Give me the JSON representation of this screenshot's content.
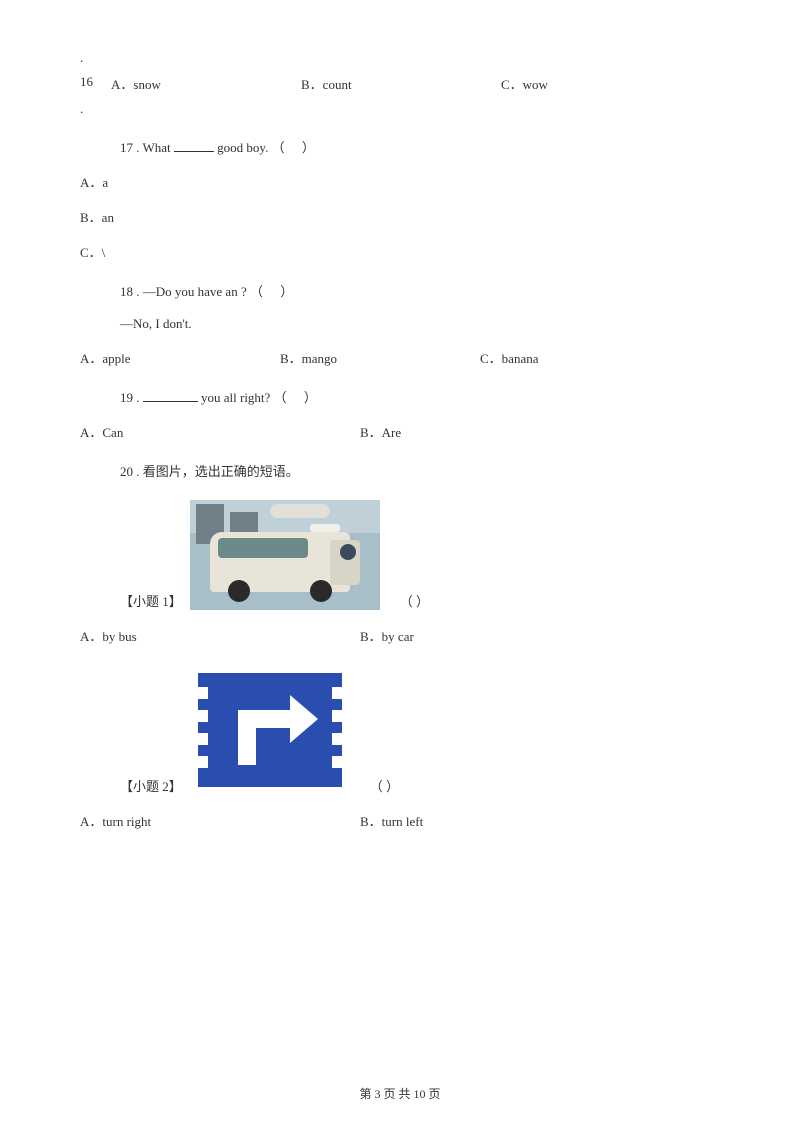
{
  "q16": {
    "num": "16",
    "a": "A．snow",
    "b": "B．count",
    "c": "C．wow"
  },
  "q17": {
    "text_pre": "17 . What ",
    "text_post": " good boy. （",
    "text_end": "）",
    "a": "A．a",
    "b": "B．an",
    "c": "C．\\"
  },
  "q18": {
    "text": "18 . —Do you have an      ? （",
    "text_end": "）",
    "followup": "—No, I don't.",
    "a": "A．apple",
    "b": "B．mango",
    "c": "C．banana"
  },
  "q19": {
    "text_pre": "19 . ",
    "text_post": " you all right? （",
    "text_end": "）",
    "a": "A．Can",
    "b": "B．Are"
  },
  "q20": {
    "text": "20 . 看图片，选出正确的短语。",
    "sub1": {
      "label": "【小题 1】",
      "paren": "（     ）",
      "a": "A．by bus",
      "b": "B．by car"
    },
    "sub2": {
      "label": "【小题 2】",
      "paren": "（     ）",
      "a": "A．turn right",
      "b": "B．turn left"
    }
  },
  "footer": "第 3 页 共 10 页"
}
